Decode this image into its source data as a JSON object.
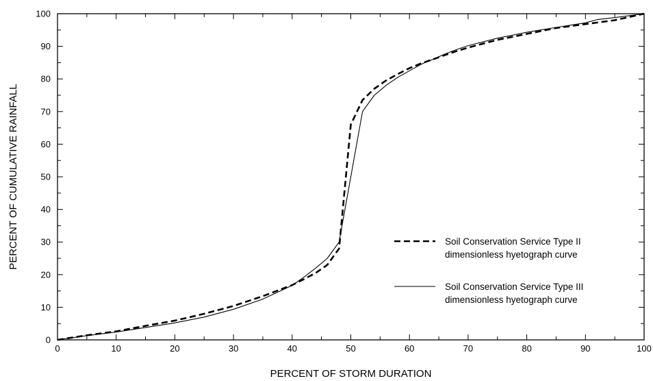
{
  "chart_data": {
    "type": "line",
    "title": "",
    "xlabel": "PERCENT OF STORM DURATION",
    "ylabel": "PERCENT OF CUMULATIVE RAINFALL",
    "xlim": [
      0,
      100
    ],
    "ylim": [
      0,
      100
    ],
    "x_ticks": [
      "0",
      "10",
      "20",
      "30",
      "40",
      "50",
      "60",
      "70",
      "80",
      "90",
      "100"
    ],
    "y_ticks": [
      "0",
      "10",
      "20",
      "30",
      "40",
      "50",
      "60",
      "70",
      "80",
      "90",
      "100"
    ],
    "grid": false,
    "legend_position": "lower-right",
    "series": [
      {
        "name_lines": [
          "Soil Conservation Service Type II",
          "dimensionless hyetograph curve"
        ],
        "style": "dashed",
        "color": "#000000",
        "x": [
          0,
          5,
          10,
          15,
          20,
          25,
          30,
          35,
          40,
          42,
          44,
          46,
          48,
          50,
          52,
          54,
          56,
          58,
          60,
          62,
          64,
          66,
          68,
          70,
          75,
          80,
          85,
          90,
          95,
          100
        ],
        "y": [
          0,
          1.4,
          2.6,
          4.3,
          5.9,
          8.0,
          10.4,
          13.4,
          16.8,
          18.6,
          20.5,
          23.0,
          28.0,
          66.0,
          73.5,
          77.0,
          79.5,
          81.5,
          83.3,
          84.8,
          86.0,
          87.3,
          88.5,
          89.6,
          92.0,
          93.8,
          95.6,
          96.8,
          98.0,
          100
        ]
      },
      {
        "name_lines": [
          "Soil Conservation Service Type III",
          "dimensionless hyetograph curve"
        ],
        "style": "solid",
        "color": "#000000",
        "x": [
          0,
          5,
          10,
          15,
          20,
          25,
          30,
          35,
          40,
          42,
          44,
          46,
          48,
          50,
          52,
          54,
          56,
          58,
          60,
          62,
          64,
          66,
          68,
          70,
          75,
          80,
          85,
          90,
          92,
          95,
          100
        ],
        "y": [
          0,
          1.3,
          2.4,
          3.8,
          5.2,
          7.0,
          9.4,
          12.5,
          16.7,
          19.2,
          22.0,
          25.0,
          30.0,
          50.0,
          70.0,
          75.0,
          78.0,
          80.5,
          82.5,
          84.5,
          86.0,
          87.6,
          89.0,
          90.2,
          92.5,
          94.3,
          95.8,
          97.2,
          98.2,
          98.8,
          100
        ]
      }
    ]
  }
}
